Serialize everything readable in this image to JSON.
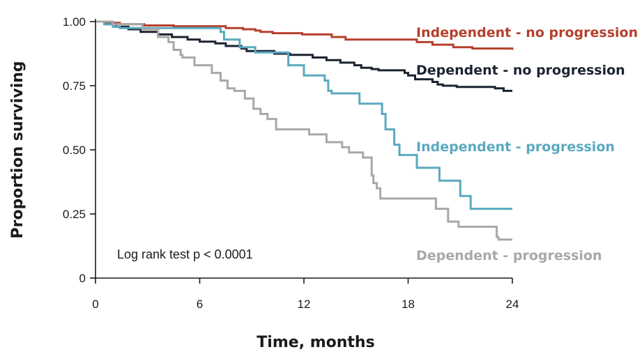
{
  "chart_data": {
    "type": "line",
    "title": "",
    "xlabel": "Time, months",
    "ylabel": "Proportion surviving",
    "xlim": [
      0,
      24
    ],
    "ylim": [
      0,
      1
    ],
    "x_ticks": [
      0,
      6,
      12,
      18,
      24
    ],
    "x_tick_labels": [
      "0",
      "6",
      "12",
      "18",
      "24"
    ],
    "y_ticks": [
      0,
      0.25,
      0.5,
      0.75,
      1.0
    ],
    "y_tick_labels": [
      "0",
      "0.25",
      "0.50",
      "0.75",
      "1.00"
    ],
    "grid": false,
    "legend": "inline labels at right of curves",
    "annotation": "Log rank test p < 0.0001",
    "series": [
      {
        "name": "Independent - no progression",
        "color": "#b5402d",
        "points": [
          [
            0,
            1.0
          ],
          [
            0.5,
            0.995
          ],
          [
            1.4,
            0.99
          ],
          [
            2.8,
            0.985
          ],
          [
            4.5,
            0.982
          ],
          [
            7.5,
            0.975
          ],
          [
            8.5,
            0.97
          ],
          [
            9.2,
            0.965
          ],
          [
            9.5,
            0.96
          ],
          [
            10.2,
            0.955
          ],
          [
            11.9,
            0.95
          ],
          [
            13.6,
            0.94
          ],
          [
            14.4,
            0.93
          ],
          [
            18.5,
            0.92
          ],
          [
            19.4,
            0.91
          ],
          [
            20.6,
            0.9
          ],
          [
            21.7,
            0.895
          ],
          [
            24,
            0.89
          ]
        ]
      },
      {
        "name": "Dependent - no progression",
        "color": "#1b2330",
        "points": [
          [
            0,
            1.0
          ],
          [
            0.6,
            0.99
          ],
          [
            1.2,
            0.98
          ],
          [
            1.9,
            0.97
          ],
          [
            2.6,
            0.96
          ],
          [
            3.6,
            0.95
          ],
          [
            4.4,
            0.94
          ],
          [
            5.3,
            0.93
          ],
          [
            6.0,
            0.922
          ],
          [
            6.9,
            0.915
          ],
          [
            7.5,
            0.905
          ],
          [
            8.4,
            0.895
          ],
          [
            8.7,
            0.885
          ],
          [
            10.3,
            0.875
          ],
          [
            11.2,
            0.87
          ],
          [
            12.5,
            0.86
          ],
          [
            13.3,
            0.85
          ],
          [
            14.1,
            0.84
          ],
          [
            14.9,
            0.83
          ],
          [
            15.3,
            0.82
          ],
          [
            15.9,
            0.815
          ],
          [
            16.3,
            0.81
          ],
          [
            17.8,
            0.8
          ],
          [
            18.0,
            0.79
          ],
          [
            18.4,
            0.775
          ],
          [
            19.4,
            0.765
          ],
          [
            19.7,
            0.755
          ],
          [
            20.0,
            0.75
          ],
          [
            20.8,
            0.745
          ],
          [
            23.0,
            0.74
          ],
          [
            23.5,
            0.73
          ],
          [
            24,
            0.73
          ]
        ]
      },
      {
        "name": "Independent - progression",
        "color": "#5aa9bf",
        "points": [
          [
            0,
            1.0
          ],
          [
            0.5,
            0.99
          ],
          [
            1.0,
            0.98
          ],
          [
            1.4,
            0.975
          ],
          [
            7.2,
            0.96
          ],
          [
            7.4,
            0.93
          ],
          [
            8.3,
            0.9
          ],
          [
            9.2,
            0.88
          ],
          [
            11.1,
            0.83
          ],
          [
            12.0,
            0.79
          ],
          [
            13.2,
            0.77
          ],
          [
            13.4,
            0.73
          ],
          [
            13.6,
            0.72
          ],
          [
            15.2,
            0.68
          ],
          [
            16.5,
            0.64
          ],
          [
            16.7,
            0.58
          ],
          [
            17.2,
            0.52
          ],
          [
            17.5,
            0.48
          ],
          [
            18.5,
            0.43
          ],
          [
            19.8,
            0.38
          ],
          [
            21.0,
            0.32
          ],
          [
            21.6,
            0.27
          ],
          [
            24,
            0.27
          ]
        ]
      },
      {
        "name": "Dependent - progression",
        "color": "#a8a8a8",
        "points": [
          [
            0,
            1.0
          ],
          [
            1.0,
            0.99
          ],
          [
            2.7,
            0.97
          ],
          [
            3.6,
            0.94
          ],
          [
            4.2,
            0.92
          ],
          [
            4.5,
            0.89
          ],
          [
            4.9,
            0.87
          ],
          [
            5.0,
            0.86
          ],
          [
            5.7,
            0.83
          ],
          [
            6.7,
            0.8
          ],
          [
            7.2,
            0.77
          ],
          [
            7.6,
            0.74
          ],
          [
            8.0,
            0.73
          ],
          [
            8.6,
            0.7
          ],
          [
            9.1,
            0.66
          ],
          [
            9.5,
            0.64
          ],
          [
            9.9,
            0.62
          ],
          [
            10.4,
            0.58
          ],
          [
            12.3,
            0.56
          ],
          [
            13.3,
            0.53
          ],
          [
            14.2,
            0.51
          ],
          [
            14.6,
            0.49
          ],
          [
            15.4,
            0.47
          ],
          [
            15.9,
            0.4
          ],
          [
            16.0,
            0.37
          ],
          [
            16.2,
            0.35
          ],
          [
            16.4,
            0.31
          ],
          [
            19.6,
            0.27
          ],
          [
            20.3,
            0.22
          ],
          [
            20.9,
            0.2
          ],
          [
            23.1,
            0.16
          ],
          [
            23.2,
            0.15
          ],
          [
            24,
            0.15
          ]
        ]
      }
    ]
  }
}
